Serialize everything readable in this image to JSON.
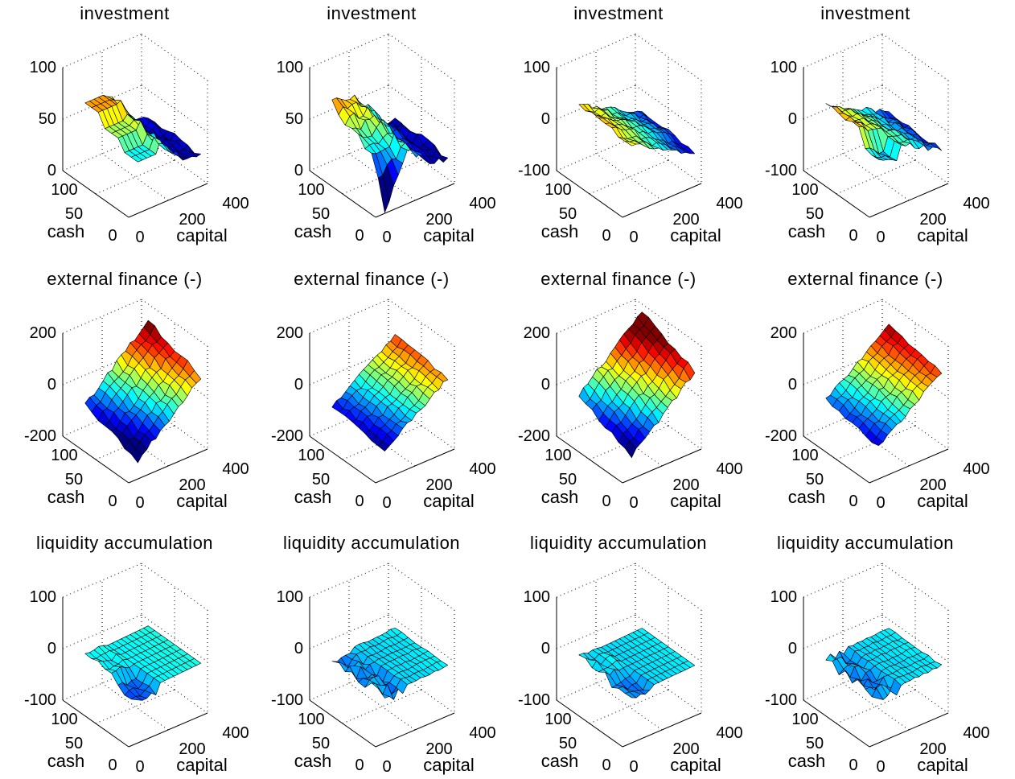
{
  "figure": {
    "colormap": "jet",
    "colors": {
      "background": "#ffffff",
      "edge": "#000000"
    }
  },
  "chart_data": [
    {
      "type": "surface",
      "row": 0,
      "col": 0,
      "title": "investment",
      "xlabel": "capital",
      "ylabel": "cash",
      "zlabel": "",
      "xlim": [
        0,
        400
      ],
      "ylim": [
        0,
        100
      ],
      "zlim": [
        0,
        100
      ],
      "xticks": [
        "200",
        "400"
      ],
      "yticks": [
        "100",
        "50",
        "0"
      ],
      "xtick_zero": "0",
      "zticks": [
        "0",
        "50",
        "100"
      ],
      "surface": "invest_a",
      "note_values_estimated": true
    },
    {
      "type": "surface",
      "row": 0,
      "col": 1,
      "title": "investment",
      "xlabel": "capital",
      "ylabel": "cash",
      "zlabel": "",
      "xlim": [
        0,
        400
      ],
      "ylim": [
        0,
        100
      ],
      "zlim": [
        0,
        100
      ],
      "xticks": [
        "200",
        "400"
      ],
      "yticks": [
        "100",
        "50",
        "0"
      ],
      "xtick_zero": "0",
      "zticks": [
        "0",
        "50",
        "100"
      ],
      "surface": "invest_b"
    },
    {
      "type": "surface",
      "row": 0,
      "col": 2,
      "title": "investment",
      "xlabel": "capital",
      "ylabel": "cash",
      "zlabel": "",
      "xlim": [
        0,
        400
      ],
      "ylim": [
        0,
        100
      ],
      "zlim": [
        -100,
        100
      ],
      "xticks": [
        "200",
        "400"
      ],
      "yticks": [
        "100",
        "50",
        "0"
      ],
      "xtick_zero": "0",
      "zticks": [
        "-100",
        "0",
        "100"
      ],
      "surface": "invest_c"
    },
    {
      "type": "surface",
      "row": 0,
      "col": 3,
      "title": "investment",
      "xlabel": "capital",
      "ylabel": "cash",
      "zlabel": "",
      "xlim": [
        0,
        400
      ],
      "ylim": [
        0,
        100
      ],
      "zlim": [
        -100,
        100
      ],
      "xticks": [
        "200",
        "400"
      ],
      "yticks": [
        "100",
        "50",
        "0"
      ],
      "xtick_zero": "0",
      "zticks": [
        "-100",
        "0",
        "100"
      ],
      "surface": "invest_d"
    },
    {
      "type": "surface",
      "row": 1,
      "col": 0,
      "title": "external finance (-)",
      "xlabel": "capital",
      "ylabel": "cash",
      "zlabel": "",
      "xlim": [
        0,
        400
      ],
      "ylim": [
        0,
        100
      ],
      "zlim": [
        -200,
        200
      ],
      "xticks": [
        "200",
        "400"
      ],
      "yticks": [
        "100",
        "50",
        "0"
      ],
      "xtick_zero": "0",
      "zticks": [
        "-200",
        "0",
        "200"
      ],
      "surface": "ext_a"
    },
    {
      "type": "surface",
      "row": 1,
      "col": 1,
      "title": "external finance (-)",
      "xlabel": "capital",
      "ylabel": "cash",
      "zlabel": "",
      "xlim": [
        0,
        400
      ],
      "ylim": [
        0,
        100
      ],
      "zlim": [
        -200,
        200
      ],
      "xticks": [
        "200",
        "400"
      ],
      "yticks": [
        "100",
        "50",
        "0"
      ],
      "xtick_zero": "0",
      "zticks": [
        "-200",
        "0",
        "200"
      ],
      "surface": "ext_b"
    },
    {
      "type": "surface",
      "row": 1,
      "col": 2,
      "title": "external finance (-)",
      "xlabel": "capital",
      "ylabel": "cash",
      "zlabel": "",
      "xlim": [
        0,
        400
      ],
      "ylim": [
        0,
        100
      ],
      "zlim": [
        -200,
        200
      ],
      "xticks": [
        "200",
        "400"
      ],
      "yticks": [
        "100",
        "50",
        "0"
      ],
      "xtick_zero": "0",
      "zticks": [
        "-200",
        "0",
        "200"
      ],
      "surface": "ext_c"
    },
    {
      "type": "surface",
      "row": 1,
      "col": 3,
      "title": "external finance (-)",
      "xlabel": "capital",
      "ylabel": "cash",
      "zlabel": "",
      "xlim": [
        0,
        400
      ],
      "ylim": [
        0,
        100
      ],
      "zlim": [
        -200,
        200
      ],
      "xticks": [
        "200",
        "400"
      ],
      "yticks": [
        "100",
        "50",
        "0"
      ],
      "xtick_zero": "0",
      "zticks": [
        "-200",
        "0",
        "200"
      ],
      "surface": "ext_d"
    },
    {
      "type": "surface",
      "row": 2,
      "col": 0,
      "title": "liquidity accumulation",
      "xlabel": "capital",
      "ylabel": "cash",
      "zlabel": "",
      "xlim": [
        0,
        400
      ],
      "ylim": [
        0,
        100
      ],
      "zlim": [
        -100,
        100
      ],
      "xticks": [
        "200",
        "400"
      ],
      "yticks": [
        "100",
        "50",
        "0"
      ],
      "xtick_zero": "0",
      "zticks": [
        "-100",
        "0",
        "100"
      ],
      "surface": "liq_a"
    },
    {
      "type": "surface",
      "row": 2,
      "col": 1,
      "title": "liquidity accumulation",
      "xlabel": "capital",
      "ylabel": "cash",
      "zlabel": "",
      "xlim": [
        0,
        400
      ],
      "ylim": [
        0,
        100
      ],
      "zlim": [
        -100,
        100
      ],
      "xticks": [
        "200",
        "400"
      ],
      "yticks": [
        "100",
        "50",
        "0"
      ],
      "xtick_zero": "0",
      "zticks": [
        "-100",
        "0",
        "100"
      ],
      "surface": "liq_b"
    },
    {
      "type": "surface",
      "row": 2,
      "col": 2,
      "title": "liquidity accumulation",
      "xlabel": "capital",
      "ylabel": "cash",
      "zlabel": "",
      "xlim": [
        0,
        400
      ],
      "ylim": [
        0,
        100
      ],
      "zlim": [
        -100,
        100
      ],
      "xticks": [
        "200",
        "400"
      ],
      "yticks": [
        "100",
        "50",
        "0"
      ],
      "xtick_zero": "0",
      "zticks": [
        "-100",
        "0",
        "100"
      ],
      "surface": "liq_c"
    },
    {
      "type": "surface",
      "row": 2,
      "col": 3,
      "title": "liquidity accumulation",
      "xlabel": "capital",
      "ylabel": "cash",
      "zlabel": "",
      "xlim": [
        0,
        400
      ],
      "ylim": [
        0,
        100
      ],
      "zlim": [
        -100,
        100
      ],
      "xticks": [
        "200",
        "400"
      ],
      "yticks": [
        "100",
        "50",
        "0"
      ],
      "xtick_zero": "0",
      "zticks": [
        "-100",
        "0",
        "100"
      ],
      "surface": "liq_d"
    }
  ]
}
